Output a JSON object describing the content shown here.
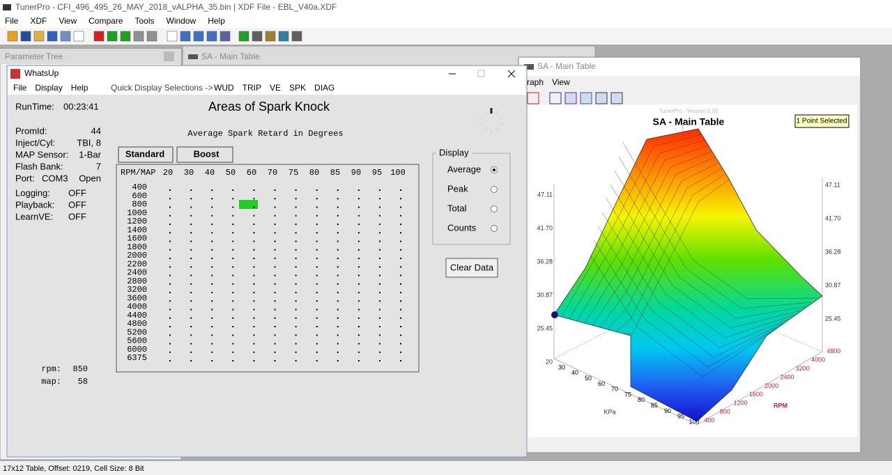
{
  "app": {
    "title": "TunerPro - CFI_496_495_26_MAY_2018_vALPHA_35.bin | XDF File - EBL_V40a.XDF",
    "menu": [
      "File",
      "XDF",
      "View",
      "Compare",
      "Tools",
      "Window",
      "Help"
    ]
  },
  "parameter_tree": {
    "title": "Parameter Tree"
  },
  "main_table_tab": {
    "title": "SA - Main Table"
  },
  "whatsup": {
    "title": "WhatsUp",
    "menu": [
      "File",
      "Display",
      "Help"
    ],
    "quick_label": "Quick Display Selections ->",
    "quick": [
      "WUD",
      "TRIP",
      "VE",
      "SPK",
      "DIAG"
    ],
    "runtime": {
      "label": "RunTime:",
      "value": "00:23:41"
    },
    "info": [
      {
        "label": "PromId:",
        "value": "44"
      },
      {
        "label": "Inject/Cyl:",
        "value": "TBI, 8"
      },
      {
        "label": "MAP Sensor:",
        "value": "1-Bar"
      },
      {
        "label": "Flash Bank:",
        "value": "7"
      }
    ],
    "port": {
      "label": "Port:",
      "value": "COM3",
      "state": "Open"
    },
    "flags": [
      {
        "label": "Logging:",
        "value": "OFF"
      },
      {
        "label": "Playback:",
        "value": "OFF"
      },
      {
        "label": "LearnVE:",
        "value": "OFF"
      }
    ],
    "readouts": [
      {
        "label": "rpm:",
        "value": "850"
      },
      {
        "label": "map:",
        "value": "58"
      }
    ],
    "heading": "Areas of Spark Knock",
    "subtitle": "Average Spark Retard in Degrees",
    "tabs": [
      "Standard",
      "Boost"
    ],
    "grid": {
      "corner": "RPM/MAP",
      "columns": [
        "20",
        "30",
        "40",
        "50",
        "60",
        "70",
        "75",
        "80",
        "85",
        "90",
        "95",
        "100"
      ],
      "rows": [
        "400",
        "600",
        "800",
        "1000",
        "1200",
        "1400",
        "1600",
        "1800",
        "2000",
        "2200",
        "2400",
        "2800",
        "3200",
        "3600",
        "4000",
        "4400",
        "4800",
        "5200",
        "5600",
        "6000",
        "6375"
      ]
    },
    "display": {
      "label": "Display",
      "options": [
        "Average",
        "Peak",
        "Total",
        "Counts"
      ],
      "selected": 0
    },
    "clear_button": "Clear Data"
  },
  "graph_window": {
    "title": "SA - Main Table",
    "menu": [
      "raph",
      "View"
    ],
    "version": "TunerPro - Version 5.00",
    "heading": "SA - Main Table",
    "selection": "1 Point Selected",
    "z_left": [
      "47.11",
      "41.70",
      "36.28",
      "30.87",
      "25.45",
      "20"
    ],
    "z_right": [
      "47.11",
      "41.70",
      "36.28",
      "30.87",
      "25.45"
    ],
    "kpa": [
      "30",
      "40",
      "50",
      "60",
      "70",
      "75",
      "80",
      "85",
      "90",
      "95",
      "100"
    ],
    "kpa_label": "KPa",
    "rpm": [
      "400",
      "800",
      "1200",
      "1600",
      "2000",
      "2400",
      "3200",
      "4000",
      "4800"
    ],
    "rpm_label": "RPM"
  },
  "status": "17x12 Table, Offset: 0219,  Cell Size: 8 Bit"
}
